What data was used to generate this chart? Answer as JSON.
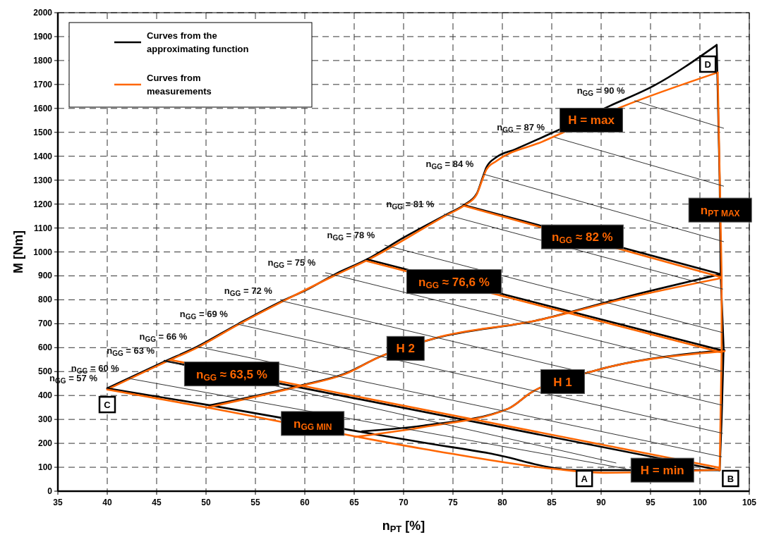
{
  "chart_data": {
    "type": "line",
    "xlabel": "n$_{PT}$ [%]",
    "ylabel": "M [Nm]",
    "xlim": [
      35,
      105
    ],
    "xticks": [
      35,
      40,
      45,
      50,
      55,
      60,
      65,
      70,
      75,
      80,
      85,
      90,
      95,
      100,
      105
    ],
    "ylim": [
      0,
      2000
    ],
    "yticks": [
      0,
      100,
      200,
      300,
      400,
      500,
      600,
      700,
      800,
      900,
      1000,
      1100,
      1200,
      1300,
      1400,
      1500,
      1600,
      1700,
      1800,
      1900,
      2000
    ],
    "grid": true,
    "legend": "top left",
    "marker": "none",
    "line_style": "solid",
    "series": [
      {
        "name": "Curves from the approximating function",
        "color": "#000000",
        "x": [
          40,
          45.8,
          49.1,
          53.2,
          57.7,
          60.1,
          63.2,
          66.3,
          70,
          74.4,
          76.1,
          77.4,
          78,
          78.4,
          79.4,
          81.3,
          85,
          90.9,
          95.3,
          101.7
        ],
        "values": [
          430,
          542,
          604,
          698,
          795,
          840,
          910,
          969,
          1060,
          1158,
          1196,
          1243,
          1311,
          1355,
          1396,
          1429,
          1497,
          1611,
          1694,
          1865
        ]
      },
      {
        "name": "Curves from measurements",
        "color": "#ff6600",
        "x": [
          40,
          45.8,
          49.1,
          53.2,
          57.7,
          63.2,
          66.3,
          74.4,
          76.1,
          77.4,
          78,
          78.4,
          79.4,
          84,
          92,
          101.8
        ],
        "values": [
          425,
          538,
          600,
          695,
          792,
          905,
          965,
          1155,
          1193,
          1240,
          1305,
          1345,
          1380,
          1460,
          1605,
          1750
        ]
      },
      {
        "color": "#000000",
        "x": [
          101.7,
          102,
          102.1,
          102.4,
          102.2,
          102
        ],
        "values": [
          1865,
          1300,
          907,
          600,
          300,
          88
        ]
      },
      {
        "color": "#000000",
        "x": [
          40,
          50.4,
          65.8,
          72,
          78.6,
          87.5,
          102
        ],
        "values": [
          430,
          359,
          247,
          203,
          159,
          88,
          88
        ]
      },
      {
        "color": "#000000",
        "x": [
          45.8,
          102
        ],
        "values": [
          545,
          88
        ]
      },
      {
        "color": "#000000",
        "x": [
          66.3,
          102.2
        ],
        "values": [
          969,
          589
        ]
      },
      {
        "color": "#000000",
        "x": [
          76.1,
          102.1
        ],
        "values": [
          1196,
          907
        ]
      },
      {
        "color": "#000000",
        "x": [
          65.8,
          72,
          80.6,
          82.9,
          89.1,
          102.5
        ],
        "values": [
          250,
          274,
          345,
          412,
          501,
          589
        ]
      },
      {
        "color": "#000000",
        "x": [
          50.4,
          59.6,
          64.1,
          67.5,
          73.2,
          83.4,
          92.9,
          102.1
        ],
        "values": [
          359,
          442,
          492,
          560,
          639,
          713,
          816,
          907
        ]
      },
      {
        "color": "#ff6600",
        "x": [
          101.8,
          102.2,
          102.2,
          102
        ],
        "values": [
          1750,
          900,
          585,
          88
        ]
      },
      {
        "color": "#ff6600",
        "x": [
          40,
          50.1,
          72,
          85.5,
          90.5,
          102
        ],
        "values": [
          425,
          350,
          177,
          92,
          77,
          90
        ]
      },
      {
        "color": "#ff6600",
        "x": [
          46.5,
          102
        ],
        "values": [
          548,
          98
        ]
      },
      {
        "color": "#ff6600",
        "x": [
          66.3,
          102.2
        ],
        "values": [
          962,
          580
        ]
      },
      {
        "color": "#ff6600",
        "x": [
          76.1,
          102.1
        ],
        "values": [
          1193,
          895
        ]
      },
      {
        "color": "#ff6600",
        "x": [
          65.1,
          72,
          80.6,
          82.9,
          89.1,
          102.5
        ],
        "values": [
          227,
          268,
          345,
          412,
          501,
          585
        ]
      },
      {
        "color": "#ff6600",
        "x": [
          50.1,
          59.6,
          64.1,
          67.5,
          73.2,
          83.4,
          92.9,
          102.1
        ],
        "values": [
          350,
          440,
          490,
          560,
          640,
          713,
          810,
          890
        ]
      },
      {
        "color": "#333333",
        "x": [
          93.4,
          102.4
        ],
        "values": [
          1632,
          1517
        ]
      },
      {
        "color": "#333333",
        "x": [
          85.3,
          102.4
        ],
        "values": [
          1479,
          1275
        ]
      },
      {
        "color": "#333333",
        "x": [
          78.1,
          102.4
        ],
        "values": [
          1325,
          1043
        ]
      },
      {
        "color": "#333333",
        "x": [
          74.1,
          102.3
        ],
        "values": [
          1158,
          845
        ]
      },
      {
        "color": "#333333",
        "x": [
          68.1,
          102.3
        ],
        "values": [
          1028,
          663
        ]
      },
      {
        "color": "#333333",
        "x": [
          62.1,
          102.3
        ],
        "values": [
          913,
          501
        ]
      },
      {
        "color": "#333333",
        "x": [
          57.7,
          102.3
        ],
        "values": [
          795,
          359
        ]
      },
      {
        "color": "#333333",
        "x": [
          53.2,
          102.3
        ],
        "values": [
          698,
          242
        ]
      },
      {
        "color": "#333333",
        "x": [
          49.1,
          102.2
        ],
        "values": [
          604,
          144
        ]
      },
      {
        "color": "#333333",
        "x": [
          45.8,
          91.5
        ],
        "values": [
          545,
          118
        ]
      },
      {
        "color": "#333333",
        "x": [
          42.2,
          92.5
        ],
        "values": [
          471,
          94
        ]
      }
    ],
    "annotations": [
      {
        "text": "n$_{GG}$ = 57 %",
        "x": 40,
        "y": 430
      },
      {
        "text": "n$_{GG}$ = 60 %",
        "x": 42.2,
        "y": 471
      },
      {
        "text": "n$_{GG}$ = 63 %",
        "x": 45.8,
        "y": 545
      },
      {
        "text": "n$_{GG}$ = 66 %",
        "x": 49.1,
        "y": 604
      },
      {
        "text": "n$_{GG}$ = 69 %",
        "x": 53.2,
        "y": 698
      },
      {
        "text": "n$_{GG}$ = 72 %",
        "x": 57.7,
        "y": 795
      },
      {
        "text": "n$_{GG}$ = 75 %",
        "x": 62.1,
        "y": 913
      },
      {
        "text": "n$_{GG}$ = 78 %",
        "x": 68.1,
        "y": 1028
      },
      {
        "text": "n$_{GG}$ = 81 %",
        "x": 74.1,
        "y": 1158
      },
      {
        "text": "n$_{GG}$ = 84 %",
        "x": 78.1,
        "y": 1325
      },
      {
        "text": "n$_{GG}$ = 87 %",
        "x": 85.3,
        "y": 1479
      },
      {
        "text": "n$_{GG}$ = 90 %",
        "x": 93.4,
        "y": 1632
      },
      {
        "text": "n$_{GG}$ ≈ 63,5 %",
        "x": 52.6,
        "y": 490
      },
      {
        "text": "n$_{GG}$ ≈ 76,6 %",
        "x": 75.1,
        "y": 876
      },
      {
        "text": "n$_{GG}$ ≈ 82 %",
        "x": 88.1,
        "y": 1063
      },
      {
        "text": "H = max",
        "x": 89,
        "y": 1551
      },
      {
        "text": "n$_{PT MAX}$",
        "x": 102.05,
        "y": 1175
      },
      {
        "text": "H 2",
        "x": 70.2,
        "y": 597
      },
      {
        "text": "H  1",
        "x": 86.1,
        "y": 458
      },
      {
        "text": "n$_{GG MIN}$",
        "x": 60.8,
        "y": 283
      },
      {
        "text": "H = min",
        "x": 96.2,
        "y": 88
      },
      {
        "text": "A",
        "x": 88.3,
        "y": 53
      },
      {
        "text": "B",
        "x": 103.1,
        "y": 53
      },
      {
        "text": "C",
        "x": 40,
        "y": 362
      },
      {
        "text": "D",
        "x": 100.8,
        "y": 1785
      }
    ]
  }
}
